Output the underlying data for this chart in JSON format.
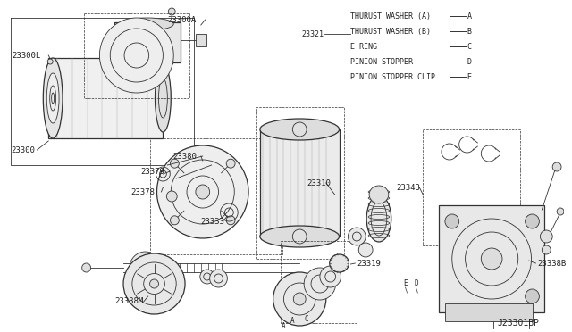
{
  "background_color": "#ffffff",
  "line_color": "#333333",
  "text_color": "#222222",
  "fig_width": 6.4,
  "fig_height": 3.72,
  "dpi": 100,
  "legend_items": [
    {
      "label": "THURUST WASHER (A)",
      "letter": "A"
    },
    {
      "label": "THURUST WASHER (B)",
      "letter": "B"
    },
    {
      "label": "E RING",
      "letter": "C"
    },
    {
      "label": "PINION STOPPER",
      "letter": "D"
    },
    {
      "label": "PINION STOPPER CLIP",
      "letter": "E"
    }
  ],
  "footer_text": "J23301BP",
  "font_size_parts": 6.5,
  "font_size_legend": 6.0,
  "font_size_footer": 7
}
